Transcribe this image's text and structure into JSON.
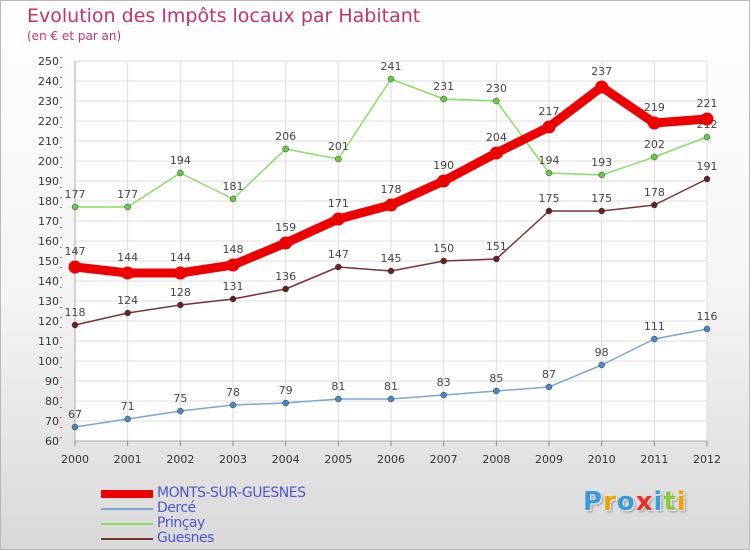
{
  "chart_data": {
    "type": "line",
    "title": "Evolution des Impôts locaux par Habitant",
    "subtitle": "(en € et par an)",
    "xlabel": "",
    "ylabel": "",
    "x": [
      2000,
      2001,
      2002,
      2003,
      2004,
      2005,
      2006,
      2007,
      2008,
      2009,
      2010,
      2011,
      2012
    ],
    "ylim": [
      60,
      250
    ],
    "yticks": [
      60,
      70,
      80,
      90,
      100,
      110,
      120,
      130,
      140,
      150,
      160,
      170,
      180,
      190,
      200,
      210,
      220,
      230,
      240,
      250
    ],
    "grid": true,
    "legend_position": "bottom-left",
    "series": [
      {
        "name": "MONTS-SUR-GUESNES",
        "color": "#ee0000",
        "marker_color": "#ee0000",
        "label_color": "#444444",
        "values": [
          147,
          144,
          144,
          148,
          159,
          171,
          178,
          190,
          204,
          217,
          237,
          219,
          221
        ]
      },
      {
        "name": "Dercé",
        "color": "#7ba6d0",
        "marker_color": "#4a8ac9",
        "label_color": "#444444",
        "values": [
          67,
          71,
          75,
          78,
          79,
          81,
          81,
          83,
          85,
          87,
          98,
          111,
          116
        ]
      },
      {
        "name": "Prinçay",
        "color": "#88dd66",
        "marker_color": "#66cc44",
        "label_color": "#444444",
        "values": [
          177,
          177,
          194,
          181,
          206,
          201,
          241,
          231,
          230,
          194,
          193,
          202,
          212
        ]
      },
      {
        "name": "Guesnes",
        "color": "#7a3333",
        "marker_color": "#6b1f1f",
        "label_color": "#444444",
        "values": [
          118,
          124,
          128,
          131,
          136,
          147,
          145,
          150,
          151,
          175,
          175,
          178,
          191
        ]
      }
    ]
  },
  "brand": {
    "letters": [
      "P",
      "r",
      "o",
      "x",
      "i",
      "t",
      "i"
    ],
    "colors": [
      "#3a9bd9",
      "#f0a000",
      "#3a9bd9",
      "#e8312a",
      "#3a9bd9",
      "#8dc63f",
      "#f0a000"
    ]
  }
}
